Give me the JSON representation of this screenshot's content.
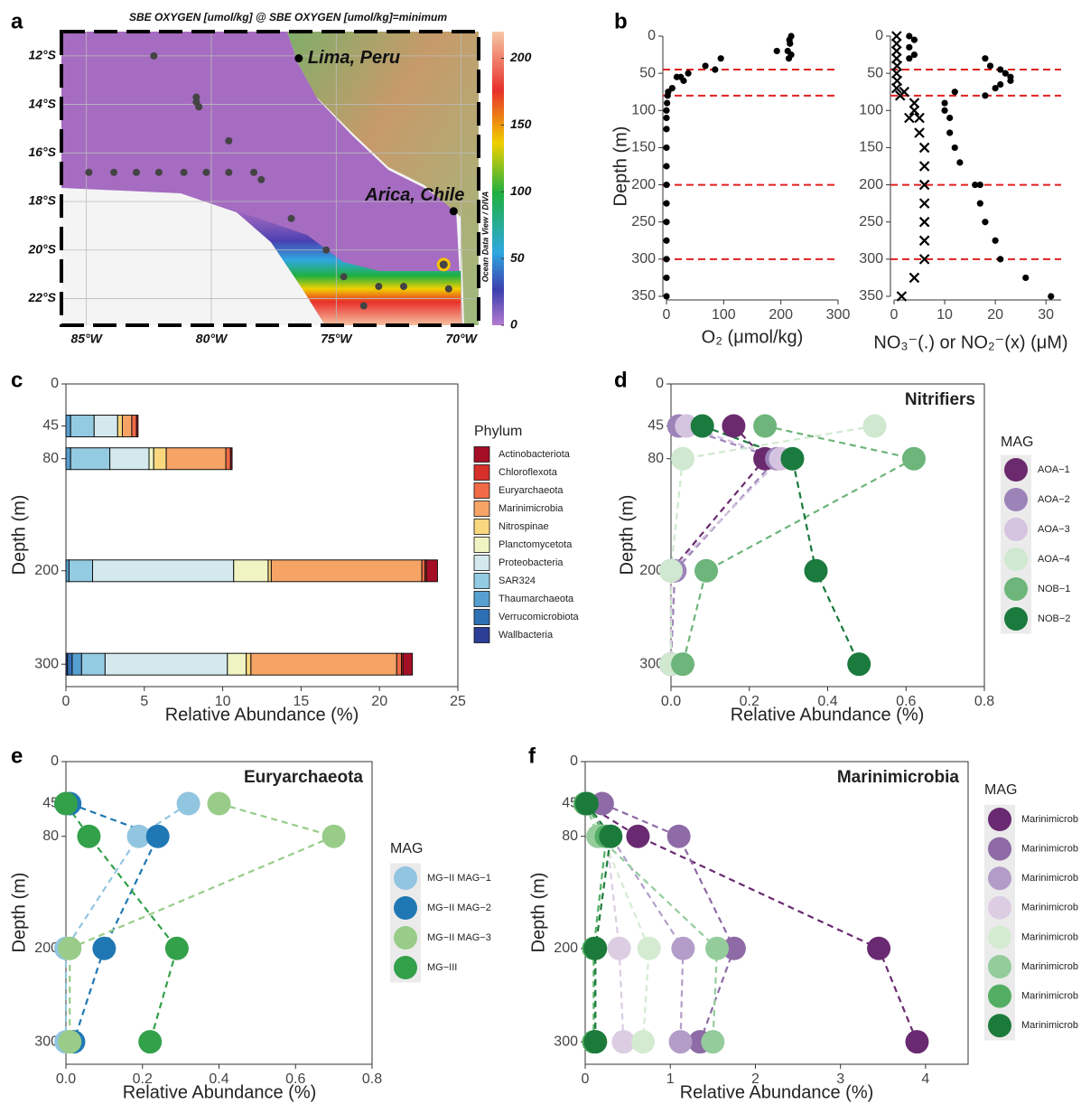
{
  "chart_data": [
    {
      "type": "map",
      "panel_label": "a",
      "title": "SBE OXYGEN [umol/kg] @ SBE OXYGEN [umol/kg]=minimum",
      "xlim": [
        -86,
        -69.3
      ],
      "ylim": [
        -23.1,
        -11
      ],
      "grid": true,
      "xticks": [
        {
          "value": -85,
          "label": "85°W"
        },
        {
          "value": -80,
          "label": "80°W"
        },
        {
          "value": -75,
          "label": "75°W"
        },
        {
          "value": -70,
          "label": "70°W"
        }
      ],
      "yticks": [
        {
          "value": -12,
          "label": "12°S"
        },
        {
          "value": -14,
          "label": "14°S"
        },
        {
          "value": -16,
          "label": "16°S"
        },
        {
          "value": -18,
          "label": "18°S"
        },
        {
          "value": -20,
          "label": "20°S"
        },
        {
          "value": -22,
          "label": "22°S"
        }
      ],
      "stations": {
        "color": "#444444",
        "x": [
          -82.3,
          -80.6,
          -80.6,
          -80.5,
          -79.3,
          -84.9,
          -83.9,
          -83.0,
          -82.1,
          -81.1,
          -80.2,
          -79.3,
          -78.3,
          -78.0,
          -76.8,
          -75.4,
          -74.7,
          -73.3,
          -72.3,
          -70.5,
          -73.9
        ],
        "y": [
          -12.0,
          -13.7,
          -13.9,
          -14.1,
          -15.5,
          -16.8,
          -16.8,
          -16.8,
          -16.8,
          -16.8,
          -16.8,
          -16.8,
          -16.8,
          -17.1,
          -18.7,
          -20.0,
          -21.1,
          -21.5,
          -21.5,
          -21.6,
          -22.3
        ]
      },
      "highlight_station": {
        "x": -70.7,
        "y": -20.6,
        "color": "#f5c400"
      },
      "places": [
        {
          "name": "Lima, Peru",
          "x": -76.5,
          "y": -12.1
        },
        {
          "name": "Arica, Chile",
          "x": -70.3,
          "y": -18.4
        }
      ],
      "colorbar": {
        "label": "Ocean Data View / DIVA",
        "lim": [
          0,
          220
        ],
        "ticks": [
          0,
          50,
          100,
          150,
          200
        ]
      }
    },
    {
      "type": "scatter",
      "panel_label": "b",
      "xlabel": "O₂ (μmol/kg)",
      "ylabel": "Depth (m)",
      "xlim": [
        0,
        300
      ],
      "ylim": [
        0,
        350
      ],
      "y_inverted": true,
      "xticks": [
        0,
        100,
        200,
        300
      ],
      "yticks": [
        0,
        50,
        100,
        150,
        200,
        250,
        300,
        350
      ],
      "hlines": {
        "values": [
          45,
          80,
          200,
          300
        ],
        "color": "#e02020"
      },
      "series": [
        {
          "marker": "dot",
          "color": "#000000",
          "x": [
            218,
            215,
            216,
            212,
            218,
            214,
            193,
            95,
            68,
            85,
            38,
            25,
            30,
            18,
            10,
            3,
            2,
            1,
            0,
            0,
            0,
            0,
            0,
            0,
            0,
            0,
            0,
            0,
            0,
            0
          ],
          "y": [
            0,
            5,
            10,
            20,
            25,
            30,
            20,
            30,
            40,
            45,
            50,
            55,
            60,
            55,
            70,
            75,
            80,
            90,
            100,
            110,
            125,
            150,
            175,
            200,
            225,
            250,
            275,
            300,
            325,
            350
          ]
        }
      ]
    },
    {
      "type": "scatter",
      "xlabel": "NO₃⁻(.) or NO₂⁻(x) (μM)",
      "xlim": [
        0,
        33
      ],
      "ylim": [
        0,
        350
      ],
      "y_inverted": true,
      "xticks": [
        0,
        10,
        20,
        30
      ],
      "yticks": [
        0,
        50,
        100,
        150,
        200,
        250,
        300,
        350
      ],
      "hlines": {
        "values": [
          45,
          80,
          200,
          300
        ],
        "color": "#e02020"
      },
      "series": [
        {
          "marker": "dot",
          "color": "#000000",
          "x": [
            3,
            4,
            3,
            4,
            3,
            18,
            19,
            21,
            22,
            23,
            23,
            21,
            20,
            12,
            18,
            10,
            10,
            11,
            11,
            12,
            13,
            16,
            17,
            17,
            18,
            20,
            21,
            26,
            31
          ],
          "y": [
            0,
            5,
            15,
            25,
            30,
            30,
            40,
            45,
            50,
            55,
            60,
            65,
            70,
            75,
            80,
            90,
            100,
            110,
            130,
            150,
            170,
            200,
            200,
            225,
            250,
            275,
            300,
            325,
            350
          ]
        },
        {
          "marker": "cross",
          "color": "#000000",
          "x": [
            0.5,
            0.5,
            0.5,
            0.5,
            0.6,
            0.5,
            0.6,
            0.5,
            1.2,
            2,
            4,
            4,
            3,
            5,
            5,
            6,
            6,
            6,
            6,
            6,
            6,
            6,
            4,
            1.5
          ],
          "y": [
            0,
            10,
            20,
            30,
            40,
            50,
            60,
            70,
            80,
            75,
            90,
            100,
            110,
            110,
            130,
            150,
            175,
            200,
            225,
            250,
            275,
            300,
            325,
            350
          ]
        }
      ]
    },
    {
      "type": "stacked_barh",
      "panel_label": "c",
      "xlabel": "Relative Abundance (%)",
      "ylabel": "Depth (m)",
      "xlim": [
        0,
        25
      ],
      "xticks": [
        0,
        5,
        10,
        15,
        20,
        25
      ],
      "ylim": [
        0,
        324
      ],
      "y_inverted": true,
      "yticks": [
        0,
        45,
        80,
        200,
        300
      ],
      "y": [
        45,
        80,
        200,
        300
      ],
      "legend_title": "Phylum",
      "series": [
        {
          "name": "Actinobacteriota",
          "color": "#a50f26",
          "values": [
            0.1,
            0.1,
            0.7,
            0.6
          ]
        },
        {
          "name": "Chloroflexota",
          "color": "#d7302a",
          "values": [
            0,
            0,
            0.1,
            0.1
          ]
        },
        {
          "name": "Euryarchaeota",
          "color": "#f06a45",
          "values": [
            0.3,
            0.3,
            0.2,
            0.3
          ]
        },
        {
          "name": "Marinimicrobia",
          "color": "#f6a466",
          "values": [
            0.6,
            3.8,
            9.6,
            9.3
          ]
        },
        {
          "name": "Nitrospinae",
          "color": "#f9d77f",
          "values": [
            0.3,
            0.8,
            0.2,
            0.3
          ]
        },
        {
          "name": "Planctomycetota",
          "color": "#f0f4c3",
          "values": [
            0,
            0.3,
            2.2,
            1.2
          ]
        },
        {
          "name": "Proteobacteria",
          "color": "#d3e9ee",
          "values": [
            1.5,
            2.5,
            9.0,
            7.8
          ]
        },
        {
          "name": "SAR324",
          "color": "#93cbe2",
          "values": [
            1.5,
            2.5,
            1.5,
            1.5
          ]
        },
        {
          "name": "Thaumarchaeota",
          "color": "#579fd0",
          "values": [
            0.3,
            0.3,
            0.2,
            0.6
          ]
        },
        {
          "name": "Verrucomicrobiota",
          "color": "#2f70b5",
          "values": [
            0,
            0,
            0,
            0.3
          ]
        },
        {
          "name": "Wallbacteria",
          "color": "#2c3e95",
          "values": [
            0,
            0,
            0,
            0.1
          ]
        }
      ]
    },
    {
      "type": "dot_line",
      "panel_label": "d",
      "title": "Nitrifiers",
      "xlabel": "Relative Abundance (%)",
      "ylabel": "Depth (m)",
      "xlim": [
        0,
        0.8
      ],
      "xticks": [
        {
          "value": 0,
          "label": "0.0"
        },
        0.2,
        0.4,
        0.6,
        0.8
      ],
      "ylim": [
        0,
        324
      ],
      "y_inverted": true,
      "yticks": [
        0,
        45,
        80,
        200,
        300
      ],
      "y": [
        45,
        80,
        200,
        300
      ],
      "legend_title": "MAG",
      "series": [
        {
          "name": "AOA−1",
          "color": "#6b2a6e",
          "values": [
            0.16,
            0.24,
            0.0,
            0.0
          ]
        },
        {
          "name": "AOA−2",
          "color": "#9c83b8",
          "values": [
            0.02,
            0.27,
            0.01,
            0.0
          ]
        },
        {
          "name": "AOA−3",
          "color": "#d4c4e0",
          "values": [
            0.04,
            0.28,
            0.0,
            0.0
          ]
        },
        {
          "name": "AOA−4",
          "color": "#cfe8cf",
          "values": [
            0.52,
            0.03,
            0.0,
            0.0
          ]
        },
        {
          "name": "NOB−1",
          "color": "#6db57a",
          "values": [
            0.24,
            0.62,
            0.09,
            0.03
          ]
        },
        {
          "name": "NOB−2",
          "color": "#1b7a3e",
          "values": [
            0.08,
            0.31,
            0.37,
            0.48
          ]
        }
      ]
    },
    {
      "type": "dot_line",
      "panel_label": "e",
      "title": "Euryarchaeota",
      "xlabel": "Relative Abundance (%)",
      "ylabel": "Depth (m)",
      "xlim": [
        0,
        0.8
      ],
      "xticks": [
        {
          "value": 0,
          "label": "0.0"
        },
        0.2,
        0.4,
        0.6,
        0.8
      ],
      "ylim": [
        0,
        324
      ],
      "y_inverted": true,
      "yticks": [
        0,
        45,
        80,
        200,
        300
      ],
      "y": [
        45,
        80,
        200,
        300
      ],
      "legend_title": "MAG",
      "series": [
        {
          "name": "MG−II MAG−1",
          "color": "#92c5e0",
          "values": [
            0.32,
            0.19,
            0.0,
            0.0
          ]
        },
        {
          "name": "MG−II MAG−2",
          "color": "#1f78b4",
          "values": [
            0.01,
            0.24,
            0.1,
            0.02
          ]
        },
        {
          "name": "MG−II MAG−3",
          "color": "#98cc88",
          "values": [
            0.4,
            0.7,
            0.01,
            0.01
          ]
        },
        {
          "name": "MG−III",
          "color": "#33a04a",
          "values": [
            0.0,
            0.06,
            0.29,
            0.22
          ]
        }
      ]
    },
    {
      "type": "dot_line",
      "panel_label": "f",
      "title": "Marinimicrobia",
      "xlabel": "Relative Abundance (%)",
      "ylabel": "Depth (m)",
      "xlim": [
        0,
        4.5
      ],
      "xticks": [
        0,
        1,
        2,
        3,
        4
      ],
      "ylim": [
        0,
        324
      ],
      "y_inverted": true,
      "yticks": [
        0,
        45,
        80,
        200,
        300
      ],
      "y": [
        45,
        80,
        200,
        300
      ],
      "legend_title": "MAG",
      "series": [
        {
          "name": "Marinimicrob",
          "color": "#6a2a72",
          "values": [
            0.0,
            0.62,
            3.45,
            3.9
          ]
        },
        {
          "name": "Marinimicrob",
          "color": "#8e6aa6",
          "values": [
            0.2,
            1.1,
            1.75,
            1.35
          ]
        },
        {
          "name": "Marinimicrob",
          "color": "#b39dc8",
          "values": [
            0.0,
            0.3,
            1.15,
            1.12
          ]
        },
        {
          "name": "Marinimicrob",
          "color": "#dccde3",
          "values": [
            0.0,
            0.25,
            0.4,
            0.45
          ]
        },
        {
          "name": "Marinimicrob",
          "color": "#d4ebd2",
          "values": [
            0.0,
            0.2,
            0.75,
            0.68
          ]
        },
        {
          "name": "Marinimicrob",
          "color": "#94cc9c",
          "values": [
            0.0,
            0.15,
            1.55,
            1.5
          ]
        },
        {
          "name": "Marinimicrob",
          "color": "#53ae64",
          "values": [
            0.0,
            0.25,
            0.1,
            0.1
          ]
        },
        {
          "name": "Marinimicrob",
          "color": "#1c7a3b",
          "values": [
            0.02,
            0.3,
            0.12,
            0.12
          ]
        }
      ]
    }
  ]
}
